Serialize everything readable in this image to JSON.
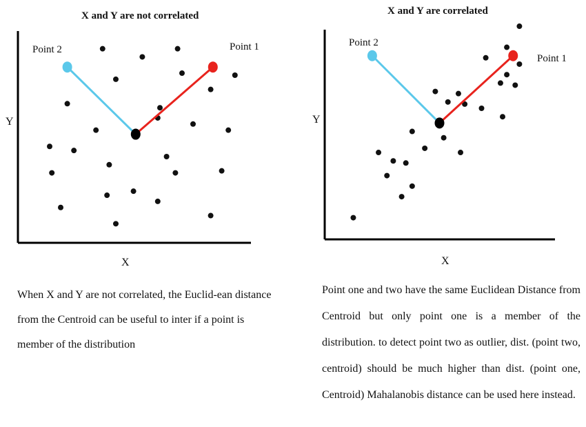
{
  "chart_data": [
    {
      "type": "scatter",
      "title": "X and Y are not correlated",
      "xlabel": "X",
      "ylabel": "Y",
      "xlim": [
        0,
        100
      ],
      "ylim": [
        0,
        100
      ],
      "grid": false,
      "centroid": {
        "x": 49,
        "y": 51
      },
      "point_1": {
        "label": "Point 1",
        "x": 84,
        "y": 84,
        "color": "#e8231d"
      },
      "point_2": {
        "label": "Point 2",
        "x": 18,
        "y": 84,
        "color": "#5bc8ea"
      },
      "points": [
        [
          34,
          93
        ],
        [
          52,
          89
        ],
        [
          68,
          93
        ],
        [
          70,
          81
        ],
        [
          40,
          78
        ],
        [
          94,
          80
        ],
        [
          18,
          66
        ],
        [
          83,
          73
        ],
        [
          60,
          64
        ],
        [
          59,
          59
        ],
        [
          75,
          56
        ],
        [
          31,
          53
        ],
        [
          91,
          53
        ],
        [
          10,
          45
        ],
        [
          21,
          43
        ],
        [
          63,
          40
        ],
        [
          37,
          36
        ],
        [
          67,
          32
        ],
        [
          11,
          32
        ],
        [
          88,
          33
        ],
        [
          48,
          23
        ],
        [
          36,
          21
        ],
        [
          59,
          18
        ],
        [
          15,
          15
        ],
        [
          83,
          11
        ],
        [
          40,
          7
        ]
      ]
    },
    {
      "type": "scatter",
      "title": "X and Y are correlated",
      "xlabel": "X",
      "ylabel": "Y",
      "xlim": [
        0,
        100
      ],
      "ylim": [
        0,
        100
      ],
      "grid": false,
      "centroid": {
        "x": 50,
        "y": 53
      },
      "point_1": {
        "label": "Point 1",
        "x": 85,
        "y": 85,
        "color": "#e8231d"
      },
      "point_2": {
        "label": "Point 2",
        "x": 18,
        "y": 85,
        "color": "#5bc8ea"
      },
      "points": [
        [
          88,
          99
        ],
        [
          82,
          89
        ],
        [
          72,
          84
        ],
        [
          88,
          81
        ],
        [
          82,
          76
        ],
        [
          79,
          72
        ],
        [
          86,
          71
        ],
        [
          59,
          67
        ],
        [
          48,
          68
        ],
        [
          54,
          63
        ],
        [
          62,
          62
        ],
        [
          70,
          60
        ],
        [
          80,
          56
        ],
        [
          37,
          49
        ],
        [
          52,
          46
        ],
        [
          43,
          41
        ],
        [
          60,
          39
        ],
        [
          21,
          39
        ],
        [
          28,
          35
        ],
        [
          34,
          34
        ],
        [
          25,
          28
        ],
        [
          37,
          23
        ],
        [
          32,
          18
        ],
        [
          9,
          8
        ]
      ]
    }
  ],
  "captions": [
    "When X and Y are not correlated, the Euclid-ean distance from the Centroid can be useful to inter if a point is member of the distribution",
    "Point one and two have the same Euclidean Distance from Centroid but only point one is a member of the distribution. to detect point two as outlier, dist. (point two, centroid) should be much higher than dist. (point one, Centroid) Mahalanobis distance can be used here instead."
  ]
}
